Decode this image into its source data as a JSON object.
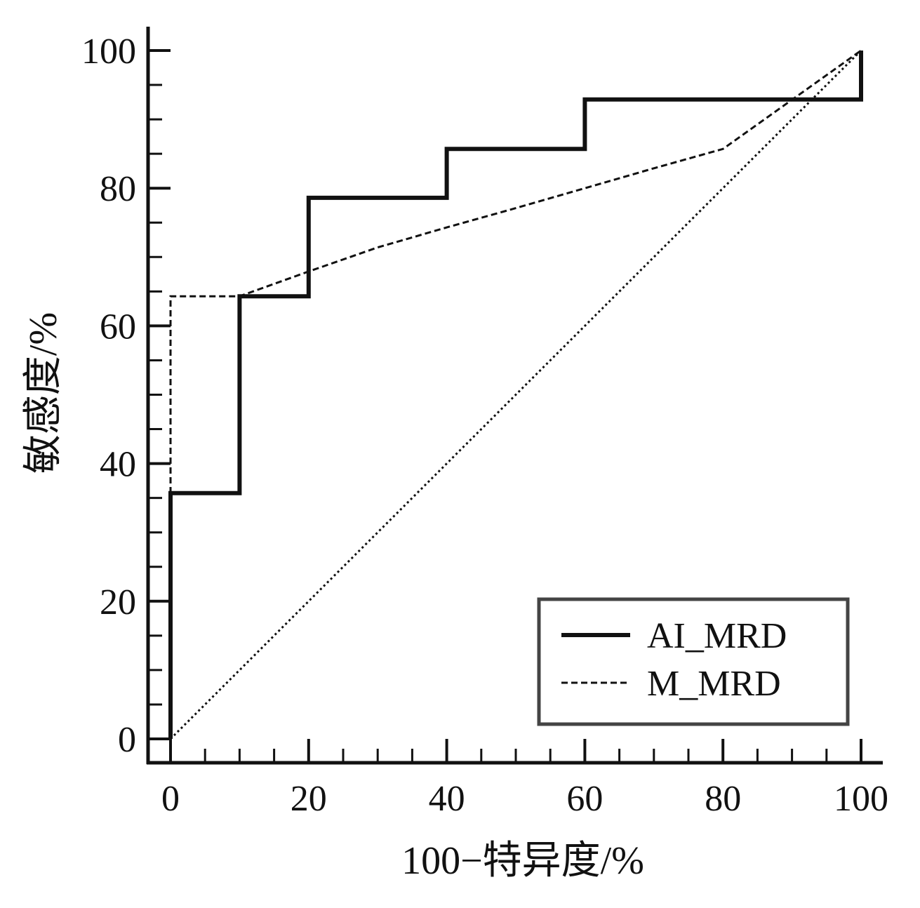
{
  "chart_data": {
    "type": "line",
    "xlabel": "100−特异度/%",
    "ylabel": "敏感度/%",
    "xlim": [
      0,
      100
    ],
    "ylim": [
      0,
      100
    ],
    "x_ticks": [
      "0",
      "20",
      "40",
      "60",
      "80",
      "100"
    ],
    "y_ticks": [
      "0",
      "20",
      "40",
      "60",
      "80",
      "100"
    ],
    "grid": false,
    "legend_position": "bottom-right",
    "series": [
      {
        "name": "AI_MRD",
        "style": "solid-thick",
        "color": "#111111",
        "x": [
          0,
          0,
          10,
          10,
          20,
          20,
          40,
          40,
          60,
          60,
          100,
          100
        ],
        "y": [
          0,
          35.7,
          35.7,
          64.3,
          64.3,
          78.6,
          78.6,
          85.7,
          85.7,
          92.9,
          92.9,
          100
        ]
      },
      {
        "name": "M_MRD",
        "style": "dashed",
        "color": "#111111",
        "x": [
          0,
          0,
          10,
          20,
          30,
          40,
          50,
          60,
          70,
          80,
          100
        ],
        "y": [
          0,
          64.3,
          64.3,
          67.9,
          71.4,
          74.3,
          77.1,
          80.0,
          82.9,
          85.7,
          100
        ]
      },
      {
        "style": "dotted",
        "color": "#111111",
        "x": [
          0,
          100
        ],
        "y": [
          0,
          100
        ]
      }
    ]
  }
}
